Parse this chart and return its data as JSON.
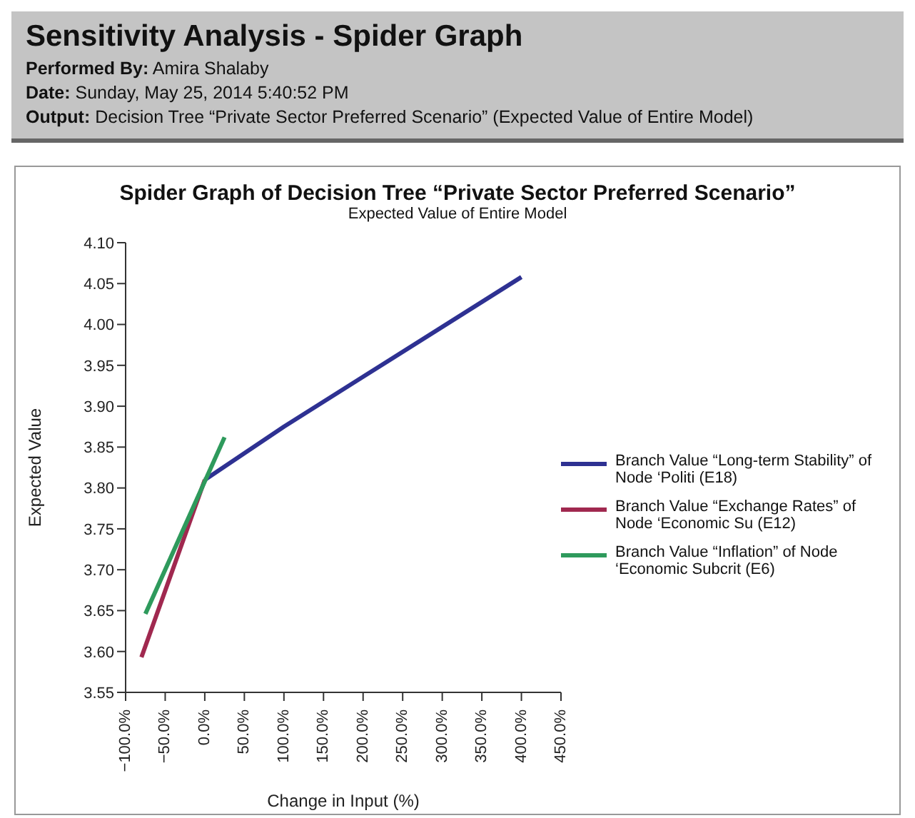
{
  "chart_data": {
    "type": "line",
    "title": "Spider Graph of Decision Tree “Private Sector Preferred Scenario”",
    "subtitle": "Expected Value of Entire Model",
    "xlabel": "Change in Input (%)",
    "ylabel": "Expected Value",
    "annotations": [
      "Sensitivity Analysis - Spider Graph",
      "Performed By: Amira Shalaby",
      "Date: Sunday, May 25, 2014 5:40:52 PM",
      "Output: Decision Tree “Private Sector Preferred  Scenario” (Expected Value of Entire Model)"
    ],
    "series": [
      {
        "name": "Branch Value “Long-term Stability” of Node ‘Politi (E18)",
        "color": "#2e3192",
        "x": [
          0,
          100,
          400
        ],
        "values": [
          3.81,
          3.875,
          4.058
        ]
      },
      {
        "name": "Branch Value “Exchange Rates” of Node ‘Economic Su (E12)",
        "color": "#a0284f",
        "x": [
          -80,
          0
        ],
        "values": [
          3.593,
          3.81
        ]
      },
      {
        "name": "Branch Value “Inflation” of Node ‘Economic Subcrit (E6)",
        "color": "#2e9a5c",
        "x": [
          -75,
          25
        ],
        "values": [
          3.646,
          3.862
        ]
      }
    ],
    "xlim": [
      -100,
      450
    ],
    "xticks": [
      {
        "value": -100,
        "label": "−100.0%"
      },
      {
        "value": -50,
        "label": "−50.0%"
      },
      {
        "value": 0,
        "label": "0.0%"
      },
      {
        "value": 50,
        "label": "50.0%"
      },
      {
        "value": 100,
        "label": "100.0%"
      },
      {
        "value": 150,
        "label": "150.0%"
      },
      {
        "value": 200,
        "label": "200.0%"
      },
      {
        "value": 250,
        "label": "250.0%"
      },
      {
        "value": 300,
        "label": "300.0%"
      },
      {
        "value": 350,
        "label": "350.0%"
      },
      {
        "value": 400,
        "label": "400.0%"
      },
      {
        "value": 450,
        "label": "450.0%"
      }
    ],
    "ylim": [
      3.55,
      4.1
    ],
    "yticks": [
      {
        "value": 3.55,
        "label": "3.55"
      },
      {
        "value": 3.6,
        "label": "3.60"
      },
      {
        "value": 3.65,
        "label": "3.65"
      },
      {
        "value": 3.7,
        "label": "3.70"
      },
      {
        "value": 3.75,
        "label": "3.75"
      },
      {
        "value": 3.8,
        "label": "3.80"
      },
      {
        "value": 3.85,
        "label": "3.85"
      },
      {
        "value": 3.9,
        "label": "3.90"
      },
      {
        "value": 3.95,
        "label": "3.95"
      },
      {
        "value": 4.0,
        "label": "4.00"
      },
      {
        "value": 4.05,
        "label": "4.05"
      },
      {
        "value": 4.1,
        "label": "4.10"
      }
    ],
    "grid": false,
    "legend": "right",
    "marker": "none",
    "line_style": "solid"
  }
}
